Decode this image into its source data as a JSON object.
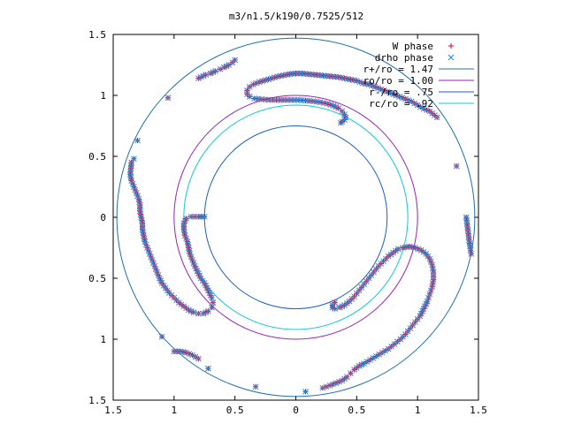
{
  "chart_data": {
    "type": "scatter",
    "title": "m3/n1.5/k190/0.7525/512",
    "xlim": [
      -1.5,
      1.5
    ],
    "ylim": [
      -1.5,
      1.5
    ],
    "x_ticks": [
      {
        "value": -1.5,
        "label": "1.5"
      },
      {
        "value": -1.0,
        "label": "1"
      },
      {
        "value": -0.5,
        "label": "0.5"
      },
      {
        "value": 0,
        "label": "0"
      },
      {
        "value": 0.5,
        "label": "0.5"
      },
      {
        "value": 1.0,
        "label": "1"
      },
      {
        "value": 1.5,
        "label": "1.5"
      }
    ],
    "y_ticks": [
      {
        "value": 1.5,
        "label": "1.5"
      },
      {
        "value": 1.0,
        "label": "1"
      },
      {
        "value": 0.5,
        "label": "0.5"
      },
      {
        "value": 0,
        "label": "0"
      },
      {
        "value": -0.5,
        "label": "0.5"
      },
      {
        "value": -1.0,
        "label": "1"
      },
      {
        "value": -1.5,
        "label": "1.5"
      }
    ],
    "grid": false,
    "legend_position": "top-right",
    "circles": [
      {
        "name": "r+/ro = 1.47",
        "radius": 1.47,
        "color": "#1e6fb0"
      },
      {
        "name": "ro/ro = 1.00",
        "radius": 1.0,
        "color": "#9a1fb8"
      },
      {
        "name": "r-/ro = .75",
        "radius": 0.75,
        "color": "#1a5ec8"
      },
      {
        "name": "rc/ro = .92",
        "radius": 0.92,
        "color": "#10c8d8"
      }
    ],
    "series": [
      {
        "name": "W phase",
        "marker": "plus",
        "color": "#e8001c"
      },
      {
        "name": "drho phase",
        "marker": "cross",
        "color": "#1c8ae8"
      }
    ],
    "arms": [
      {
        "points": [
          [
            1.16,
            0.82
          ],
          [
            1.1,
            0.87
          ],
          [
            1.05,
            0.89
          ],
          [
            1.0,
            0.92
          ],
          [
            0.95,
            0.95
          ],
          [
            0.9,
            0.97
          ],
          [
            0.85,
            0.99
          ],
          [
            0.8,
            1.01
          ],
          [
            0.75,
            1.03
          ],
          [
            0.7,
            1.05
          ],
          [
            0.65,
            1.07
          ],
          [
            0.6,
            1.09
          ],
          [
            0.55,
            1.1
          ],
          [
            0.5,
            1.12
          ],
          [
            0.45,
            1.13
          ],
          [
            0.4,
            1.14
          ],
          [
            0.35,
            1.15
          ],
          [
            0.3,
            1.155
          ],
          [
            0.25,
            1.16
          ],
          [
            0.2,
            1.165
          ],
          [
            0.15,
            1.17
          ],
          [
            0.1,
            1.175
          ],
          [
            0.05,
            1.18
          ],
          [
            0.0,
            1.18
          ],
          [
            -0.05,
            1.175
          ],
          [
            -0.1,
            1.165
          ],
          [
            -0.15,
            1.155
          ],
          [
            -0.2,
            1.14
          ],
          [
            -0.25,
            1.125
          ],
          [
            -0.3,
            1.11
          ],
          [
            -0.35,
            1.09
          ],
          [
            -0.38,
            1.07
          ],
          [
            -0.4,
            1.04
          ],
          [
            -0.4,
            1.01
          ],
          [
            -0.38,
            0.99
          ],
          [
            -0.34,
            0.975
          ],
          [
            -0.28,
            0.968
          ],
          [
            -0.22,
            0.964
          ],
          [
            -0.16,
            0.962
          ],
          [
            -0.1,
            0.962
          ],
          [
            -0.04,
            0.962
          ],
          [
            0.02,
            0.962
          ],
          [
            0.08,
            0.958
          ],
          [
            0.14,
            0.952
          ],
          [
            0.2,
            0.944
          ],
          [
            0.26,
            0.932
          ],
          [
            0.31,
            0.916
          ],
          [
            0.35,
            0.895
          ],
          [
            0.38,
            0.87
          ],
          [
            0.4,
            0.845
          ],
          [
            0.41,
            0.82
          ],
          [
            0.4,
            0.8
          ],
          [
            0.38,
            0.785
          ],
          [
            0.37,
            0.775
          ]
        ]
      },
      {
        "points": [
          [
            -0.5,
            1.29
          ],
          [
            -0.52,
            1.27
          ],
          [
            -0.55,
            1.25
          ],
          [
            -0.59,
            1.23
          ],
          [
            -0.62,
            1.215
          ],
          [
            -0.66,
            1.2
          ],
          [
            -0.7,
            1.18
          ],
          [
            -0.74,
            1.17
          ],
          [
            -0.8,
            1.14
          ],
          [
            -1.05,
            0.98
          ],
          [
            -1.3,
            0.63
          ],
          [
            -1.33,
            0.48
          ],
          [
            -1.35,
            0.45
          ],
          [
            -1.36,
            0.35
          ],
          [
            -1.35,
            0.3
          ],
          [
            -1.33,
            0.25
          ],
          [
            -1.31,
            0.2
          ],
          [
            -1.29,
            0.15
          ],
          [
            -1.28,
            0.1
          ],
          [
            -1.28,
            0.05
          ],
          [
            -1.27,
            0.0
          ],
          [
            -1.26,
            -0.05
          ],
          [
            -1.26,
            -0.1
          ],
          [
            -1.25,
            -0.15
          ],
          [
            -1.24,
            -0.2
          ],
          [
            -1.22,
            -0.25
          ],
          [
            -1.2,
            -0.3
          ],
          [
            -1.18,
            -0.35
          ],
          [
            -1.16,
            -0.4
          ],
          [
            -1.14,
            -0.45
          ],
          [
            -1.12,
            -0.5
          ],
          [
            -1.1,
            -0.54
          ],
          [
            -1.07,
            -0.58
          ],
          [
            -1.04,
            -0.62
          ],
          [
            -1.0,
            -0.66
          ],
          [
            -0.96,
            -0.7
          ],
          [
            -0.92,
            -0.73
          ],
          [
            -0.88,
            -0.76
          ],
          [
            -0.84,
            -0.78
          ],
          [
            -0.8,
            -0.79
          ],
          [
            -0.76,
            -0.79
          ],
          [
            -0.72,
            -0.77
          ],
          [
            -0.69,
            -0.74
          ],
          [
            -0.68,
            -0.7
          ],
          [
            -0.69,
            -0.66
          ],
          [
            -0.71,
            -0.62
          ],
          [
            -0.73,
            -0.58
          ],
          [
            -0.75,
            -0.54
          ],
          [
            -0.78,
            -0.5
          ],
          [
            -0.8,
            -0.46
          ],
          [
            -0.83,
            -0.4
          ],
          [
            -0.85,
            -0.35
          ],
          [
            -0.87,
            -0.3
          ],
          [
            -0.88,
            -0.25
          ],
          [
            -0.89,
            -0.2
          ],
          [
            -0.91,
            -0.15
          ],
          [
            -0.92,
            -0.1
          ],
          [
            -0.92,
            -0.05
          ],
          [
            -0.9,
            -0.01
          ],
          [
            -0.86,
            0.005
          ],
          [
            -0.8,
            0.005
          ],
          [
            -0.75,
            0.005
          ]
        ]
      },
      {
        "points": [
          [
            -0.33,
            -1.39
          ],
          [
            -0.72,
            -1.24
          ],
          [
            -0.8,
            -1.16
          ],
          [
            -0.85,
            -1.13
          ],
          [
            -0.9,
            -1.11
          ],
          [
            -0.95,
            -1.1
          ],
          [
            -1.0,
            -1.1
          ],
          [
            -1.1,
            -0.98
          ]
        ]
      },
      {
        "points": [
          [
            0.08,
            -1.43
          ],
          [
            0.22,
            -1.4
          ],
          [
            0.28,
            -1.38
          ],
          [
            0.33,
            -1.36
          ],
          [
            0.38,
            -1.34
          ],
          [
            0.42,
            -1.31
          ],
          [
            0.45,
            -1.28
          ],
          [
            0.48,
            -1.25
          ],
          [
            0.52,
            -1.22
          ],
          [
            0.56,
            -1.2
          ],
          [
            0.61,
            -1.17
          ],
          [
            0.66,
            -1.14
          ],
          [
            0.71,
            -1.11
          ],
          [
            0.76,
            -1.08
          ],
          [
            0.81,
            -1.04
          ],
          [
            0.86,
            -1.0
          ],
          [
            0.9,
            -0.96
          ],
          [
            0.94,
            -0.91
          ],
          [
            0.98,
            -0.86
          ],
          [
            1.02,
            -0.81
          ],
          [
            1.05,
            -0.75
          ],
          [
            1.08,
            -0.69
          ],
          [
            1.1,
            -0.63
          ],
          [
            1.12,
            -0.57
          ],
          [
            1.13,
            -0.51
          ],
          [
            1.13,
            -0.45
          ],
          [
            1.12,
            -0.39
          ],
          [
            1.1,
            -0.34
          ],
          [
            1.07,
            -0.3
          ],
          [
            1.03,
            -0.27
          ],
          [
            0.98,
            -0.25
          ],
          [
            0.93,
            -0.24
          ],
          [
            0.88,
            -0.25
          ],
          [
            0.84,
            -0.26
          ],
          [
            0.8,
            -0.29
          ],
          [
            0.76,
            -0.32
          ],
          [
            0.72,
            -0.36
          ],
          [
            0.68,
            -0.4
          ],
          [
            0.64,
            -0.45
          ],
          [
            0.6,
            -0.5
          ],
          [
            0.56,
            -0.55
          ],
          [
            0.52,
            -0.6
          ],
          [
            0.48,
            -0.65
          ],
          [
            0.44,
            -0.69
          ],
          [
            0.4,
            -0.72
          ],
          [
            0.36,
            -0.74
          ],
          [
            0.32,
            -0.75
          ],
          [
            0.3,
            -0.74
          ],
          [
            0.3,
            -0.72
          ],
          [
            0.32,
            -0.7
          ]
        ]
      },
      {
        "points": [
          [
            1.4,
            0.0
          ],
          [
            1.41,
            -0.08
          ],
          [
            1.42,
            -0.16
          ],
          [
            1.43,
            -0.24
          ],
          [
            1.44,
            -0.3
          ],
          [
            1.32,
            0.42
          ]
        ]
      }
    ]
  }
}
